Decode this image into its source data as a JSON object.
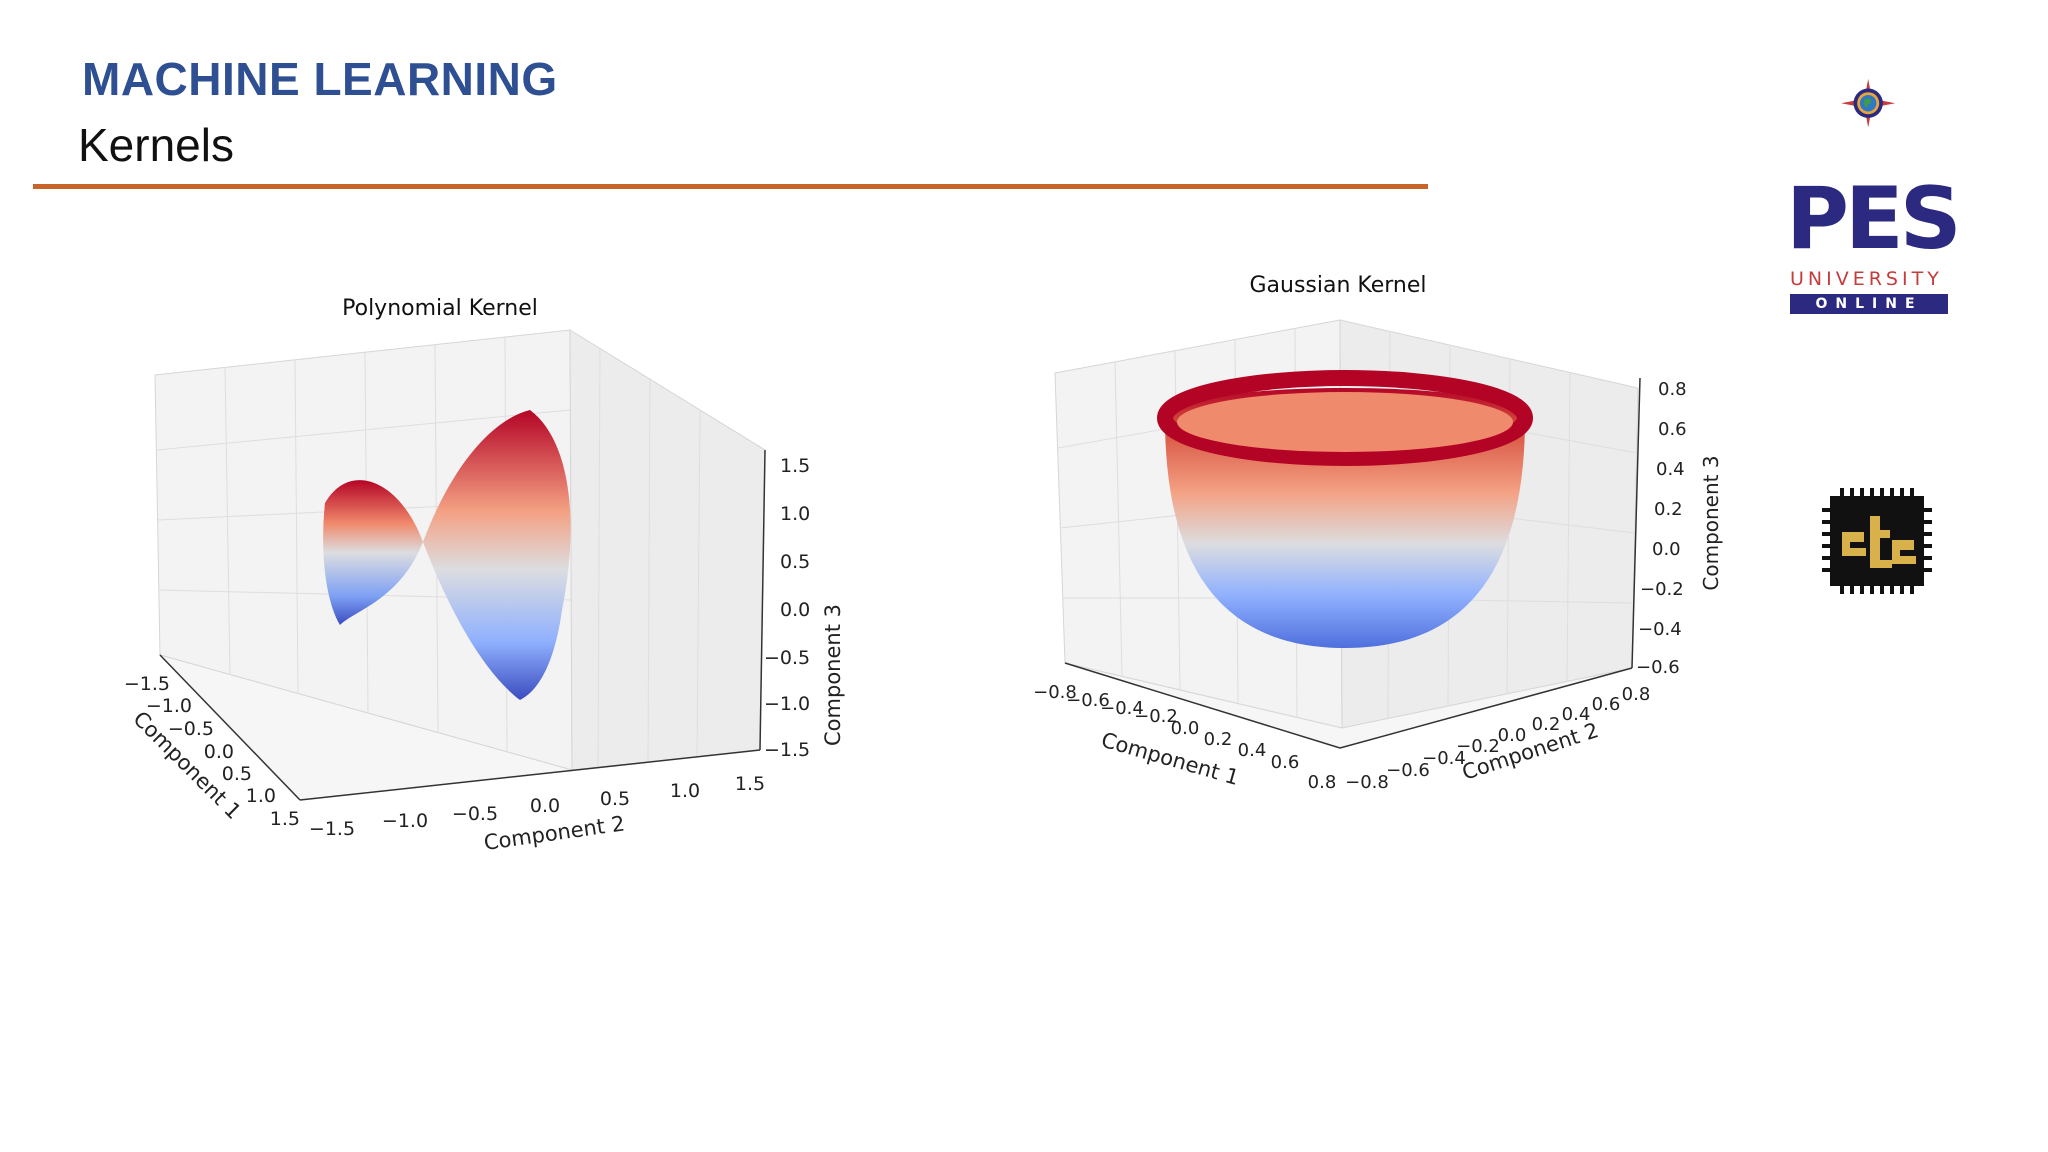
{
  "header": {
    "course": "MACHINE LEARNING",
    "topic": "Kernels"
  },
  "logo": {
    "name": "PES",
    "line2": "UNIVERSITY",
    "line3": "ONLINE",
    "brand_colors": {
      "navy": "#2b2a80",
      "red": "#c63b3b",
      "rule": "#c8632a",
      "title": "#2e4f92"
    }
  },
  "chart_data": [
    {
      "type": "surface3d",
      "title": "Polynomial Kernel",
      "xlabel": "Component 1",
      "ylabel": "Component 2",
      "zlabel": "Component 3",
      "xticks": [
        "−1.5",
        "−1.0",
        "−0.5",
        "0.0",
        "0.5",
        "1.0",
        "1.5"
      ],
      "yticks": [
        "−1.5",
        "−1.0",
        "−0.5",
        "0.0",
        "0.5",
        "1.0",
        "1.5"
      ],
      "zticks": [
        "1.5",
        "1.0",
        "0.5",
        "0.0",
        "−0.5",
        "−1.0",
        "−1.5"
      ],
      "xlim": [
        -1.5,
        1.5
      ],
      "ylim": [
        -1.5,
        1.5
      ],
      "zlim": [
        -1.5,
        1.5
      ],
      "surface": "saddle z = x² − y² (approx.)",
      "colormap": "coolwarm",
      "grid": true
    },
    {
      "type": "surface3d",
      "title": "Gaussian Kernel",
      "xlabel": "Component 1",
      "ylabel": "Component 2",
      "zlabel": "Component 3",
      "xticks": [
        "−0.8",
        "−0.6",
        "−0.4",
        "−0.2",
        "0.0",
        "0.2",
        "0.4",
        "0.6",
        "0.8"
      ],
      "yticks": [
        "−0.8",
        "−0.6",
        "−0.4",
        "−0.2",
        "0.0",
        "0.2",
        "0.4",
        "0.6",
        "0.8"
      ],
      "zticks": [
        "0.8",
        "0.6",
        "0.4",
        "0.2",
        "0.0",
        "−0.2",
        "−0.4",
        "−0.6"
      ],
      "xlim": [
        -0.8,
        0.8
      ],
      "ylim": [
        -0.8,
        0.8
      ],
      "zlim": [
        -0.6,
        0.8
      ],
      "surface": "bowl (hemisphere)",
      "colormap": "coolwarm",
      "grid": true
    }
  ]
}
